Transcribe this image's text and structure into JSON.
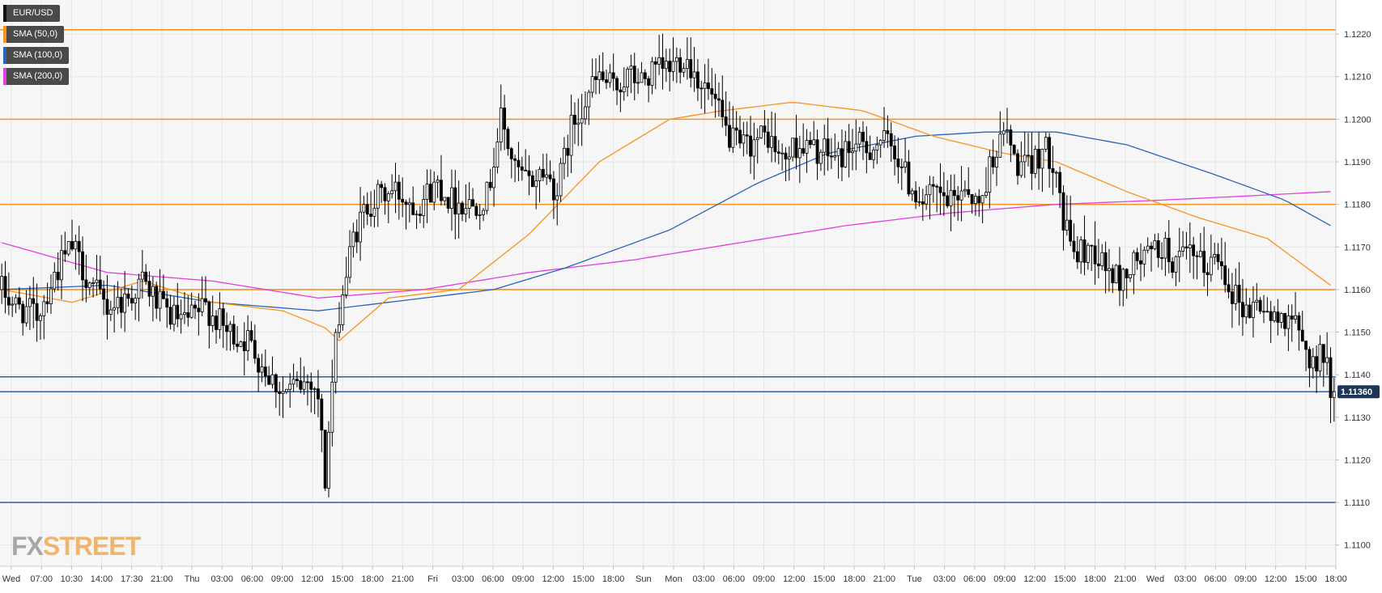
{
  "legend": [
    {
      "label": "EUR/USD",
      "color": "#111111"
    },
    {
      "label": "SMA (50,0)",
      "color": "#f7931e"
    },
    {
      "label": "SMA (100,0)",
      "color": "#2a64b8"
    },
    {
      "label": "SMA (200,0)",
      "color": "#e040e0"
    }
  ],
  "watermark": "FXSTREET",
  "last_price_label": "1.11360",
  "colors": {
    "resistance_line": "#f7931e",
    "support_line": "#1f4e9c",
    "candle_up": "#ffffff",
    "candle_down": "#000000",
    "sma50": "#f7931e",
    "sma100": "#2a64b8",
    "sma200": "#e040e0",
    "price_tag_bg": "#1d3557",
    "grid": "#e6e6e6",
    "plot_bg": "#f6f6f6"
  },
  "chart_data": {
    "type": "candlestick",
    "symbol": "EUR/USD",
    "ylim": [
      1.1095,
      1.1228
    ],
    "y_ticks": [
      "1.1100",
      "1.1110",
      "1.1120",
      "1.1130",
      "1.1140",
      "1.1150",
      "1.1160",
      "1.1170",
      "1.1180",
      "1.1190",
      "1.1200",
      "1.1210",
      "1.1220"
    ],
    "x_tick_labels": [
      "Wed",
      "07:00",
      "10:30",
      "14:00",
      "17:30",
      "21:00",
      "Thu",
      "03:00",
      "06:00",
      "09:00",
      "12:00",
      "15:00",
      "18:00",
      "21:00",
      "Fri",
      "03:00",
      "06:00",
      "09:00",
      "12:00",
      "15:00",
      "18:00",
      "Sun",
      "Mon",
      "03:00",
      "06:00",
      "09:00",
      "12:00",
      "15:00",
      "18:00",
      "21:00",
      "Tue",
      "03:00",
      "06:00",
      "09:00",
      "12:00",
      "15:00",
      "18:00",
      "21:00",
      "Wed",
      "03:00",
      "06:00",
      "09:00",
      "12:00",
      "15:00",
      "18:00"
    ],
    "horizontal_levels": [
      {
        "value": 1.1221,
        "kind": "resistance"
      },
      {
        "value": 1.12,
        "kind": "resistance"
      },
      {
        "value": 1.118,
        "kind": "resistance"
      },
      {
        "value": 1.116,
        "kind": "resistance"
      },
      {
        "value": 1.11395,
        "kind": "support"
      },
      {
        "value": 1.1136,
        "kind": "support"
      },
      {
        "value": 1.111,
        "kind": "support"
      }
    ],
    "last_price": 1.1136,
    "close_path": [
      [
        0,
        1.116
      ],
      [
        4,
        1.1156
      ],
      [
        10,
        1.1154
      ],
      [
        16,
        1.1165
      ],
      [
        20,
        1.117
      ],
      [
        26,
        1.116
      ],
      [
        30,
        1.1156
      ],
      [
        36,
        1.1158
      ],
      [
        40,
        1.1162
      ],
      [
        46,
        1.1155
      ],
      [
        52,
        1.1152
      ],
      [
        58,
        1.1156
      ],
      [
        64,
        1.115
      ],
      [
        70,
        1.1148
      ],
      [
        76,
        1.114
      ],
      [
        80,
        1.1136
      ],
      [
        84,
        1.1137
      ],
      [
        88,
        1.1139
      ],
      [
        90,
        1.1135
      ],
      [
        92,
        1.1115
      ],
      [
        94,
        1.1138
      ],
      [
        96,
        1.1155
      ],
      [
        100,
        1.1172
      ],
      [
        104,
        1.118
      ],
      [
        108,
        1.1182
      ],
      [
        112,
        1.1183
      ],
      [
        118,
        1.118
      ],
      [
        124,
        1.1185
      ],
      [
        128,
        1.1181
      ],
      [
        134,
        1.118
      ],
      [
        138,
        1.1182
      ],
      [
        142,
        1.12
      ],
      [
        146,
        1.1188
      ],
      [
        150,
        1.1185
      ],
      [
        154,
        1.1188
      ],
      [
        158,
        1.1183
      ],
      [
        162,
        1.1198
      ],
      [
        166,
        1.1205
      ],
      [
        170,
        1.121
      ],
      [
        174,
        1.1207
      ],
      [
        178,
        1.121
      ],
      [
        182,
        1.1209
      ],
      [
        186,
        1.1211
      ],
      [
        190,
        1.1212
      ],
      [
        194,
        1.1215
      ],
      [
        198,
        1.121
      ],
      [
        202,
        1.1205
      ],
      [
        206,
        1.1197
      ],
      [
        210,
        1.1193
      ],
      [
        214,
        1.1195
      ],
      [
        218,
        1.1196
      ],
      [
        222,
        1.119
      ],
      [
        226,
        1.1194
      ],
      [
        230,
        1.1193
      ],
      [
        234,
        1.1192
      ],
      [
        238,
        1.1191
      ],
      [
        242,
        1.1194
      ],
      [
        246,
        1.1193
      ],
      [
        250,
        1.1195
      ],
      [
        254,
        1.1193
      ],
      [
        258,
        1.1185
      ],
      [
        262,
        1.1181
      ],
      [
        266,
        1.1182
      ],
      [
        270,
        1.118
      ],
      [
        274,
        1.1185
      ],
      [
        278,
        1.1179
      ],
      [
        282,
        1.1192
      ],
      [
        286,
        1.1197
      ],
      [
        288,
        1.119
      ],
      [
        292,
        1.1188
      ],
      [
        296,
        1.1193
      ],
      [
        300,
        1.119
      ],
      [
        302,
        1.1175
      ],
      [
        306,
        1.1168
      ],
      [
        310,
        1.117
      ],
      [
        314,
        1.1165
      ],
      [
        318,
        1.1162
      ],
      [
        322,
        1.1166
      ],
      [
        326,
        1.1168
      ],
      [
        330,
        1.117
      ],
      [
        334,
        1.1166
      ],
      [
        338,
        1.1168
      ],
      [
        342,
        1.1165
      ],
      [
        346,
        1.1168
      ],
      [
        350,
        1.116
      ],
      [
        354,
        1.1155
      ],
      [
        358,
        1.1157
      ],
      [
        362,
        1.1152
      ],
      [
        366,
        1.1155
      ],
      [
        370,
        1.1147
      ],
      [
        374,
        1.1142
      ],
      [
        376,
        1.1146
      ],
      [
        378,
        1.1136
      ]
    ],
    "sma50": [
      [
        0,
        1.116
      ],
      [
        20,
        1.1157
      ],
      [
        40,
        1.1162
      ],
      [
        60,
        1.1157
      ],
      [
        80,
        1.1155
      ],
      [
        92,
        1.1151
      ],
      [
        96,
        1.1148
      ],
      [
        110,
        1.1158
      ],
      [
        130,
        1.116
      ],
      [
        150,
        1.1173
      ],
      [
        170,
        1.119
      ],
      [
        190,
        1.12
      ],
      [
        205,
        1.1202
      ],
      [
        225,
        1.1204
      ],
      [
        245,
        1.1202
      ],
      [
        265,
        1.1196
      ],
      [
        285,
        1.1192
      ],
      [
        300,
        1.119
      ],
      [
        320,
        1.1183
      ],
      [
        340,
        1.1177
      ],
      [
        360,
        1.1172
      ],
      [
        378,
        1.1161
      ]
    ],
    "sma100": [
      [
        0,
        1.116
      ],
      [
        30,
        1.1161
      ],
      [
        60,
        1.1157
      ],
      [
        90,
        1.1155
      ],
      [
        110,
        1.1157
      ],
      [
        140,
        1.116
      ],
      [
        160,
        1.1165
      ],
      [
        190,
        1.1174
      ],
      [
        215,
        1.1185
      ],
      [
        235,
        1.1192
      ],
      [
        260,
        1.1196
      ],
      [
        280,
        1.1197
      ],
      [
        300,
        1.1197
      ],
      [
        320,
        1.1194
      ],
      [
        345,
        1.1187
      ],
      [
        365,
        1.1181
      ],
      [
        378,
        1.1175
      ]
    ],
    "sma200": [
      [
        0,
        1.1171
      ],
      [
        30,
        1.1164
      ],
      [
        60,
        1.1162
      ],
      [
        90,
        1.1158
      ],
      [
        120,
        1.116
      ],
      [
        150,
        1.1164
      ],
      [
        180,
        1.1167
      ],
      [
        210,
        1.1171
      ],
      [
        240,
        1.1175
      ],
      [
        270,
        1.1178
      ],
      [
        300,
        1.118
      ],
      [
        330,
        1.1181
      ],
      [
        355,
        1.1182
      ],
      [
        378,
        1.1183
      ]
    ],
    "candle_count": 380
  }
}
